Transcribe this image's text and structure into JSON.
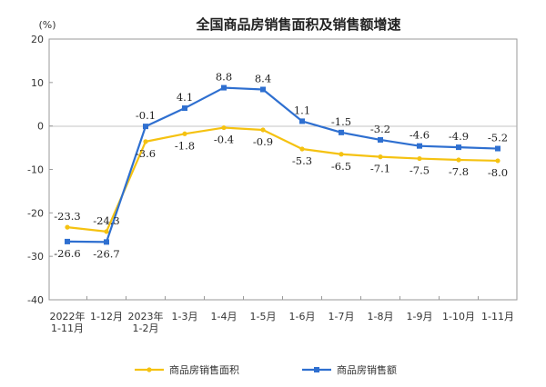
{
  "chart_data": {
    "type": "line",
    "title": "全国商品房销售面积及销售额增速",
    "unit_label": "(%)",
    "xlabel": "",
    "ylabel": "",
    "ylim": [
      -40,
      20
    ],
    "yticks": [
      20,
      10,
      0,
      -10,
      -20,
      -30,
      -40
    ],
    "grid": false,
    "legend_position": "bottom",
    "categories": [
      [
        "2022年",
        "1-11月"
      ],
      [
        "1-12月"
      ],
      [
        "2023年",
        "1-2月"
      ],
      [
        "1-3月"
      ],
      [
        "1-4月"
      ],
      [
        "1-5月"
      ],
      [
        "1-6月"
      ],
      [
        "1-7月"
      ],
      [
        "1-8月"
      ],
      [
        "1-9月"
      ],
      [
        "1-10月"
      ],
      [
        "1-11月"
      ]
    ],
    "series": [
      {
        "name": "商品房销售面积",
        "color": "#F5C211",
        "values": [
          -23.3,
          -24.3,
          -3.6,
          -1.8,
          -0.4,
          -0.9,
          -5.3,
          -6.5,
          -7.1,
          -7.5,
          -7.8,
          -8.0
        ],
        "labels": [
          "-23.3",
          "-24.3",
          "-3.6",
          "-1.8",
          "-0.4",
          "-0.9",
          "-5.3",
          "-6.5",
          "-7.1",
          "-7.5",
          "-7.8",
          "-8.0"
        ]
      },
      {
        "name": "商品房销售额",
        "color": "#2E6FD0",
        "values": [
          -26.6,
          -26.7,
          -0.1,
          4.1,
          8.8,
          8.4,
          1.1,
          -1.5,
          -3.2,
          -4.6,
          -4.9,
          -5.2
        ],
        "labels": [
          "-26.6",
          "-26.7",
          "-0.1",
          "4.1",
          "8.8",
          "8.4",
          "1.1",
          "-1.5",
          "-3.2",
          "-4.6",
          "-4.9",
          "-5.2"
        ]
      }
    ]
  }
}
